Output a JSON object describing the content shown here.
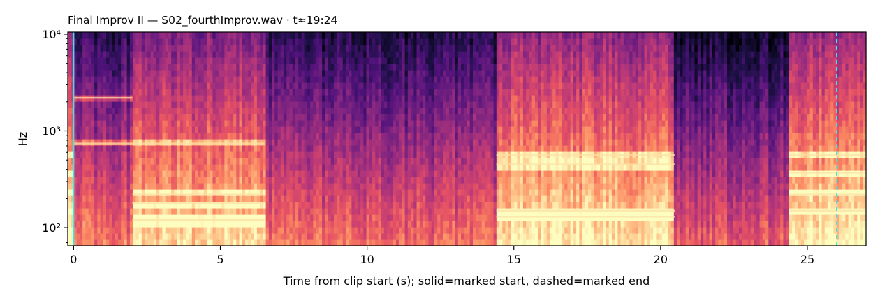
{
  "chart_data": {
    "type": "heatmap",
    "subtype": "spectrogram",
    "title": "Final Improv II  —  S02_fourthImprov.wav · t≈19:24",
    "xlabel": "Time from clip start (s); solid=marked start, dashed=marked end",
    "ylabel": "Hz",
    "xlim": [
      -0.2,
      27
    ],
    "ylim": [
      65,
      10500
    ],
    "yscale": "log",
    "xticks": [
      0,
      5,
      10,
      15,
      20,
      25
    ],
    "xtick_labels": [
      "0",
      "5",
      "10",
      "15",
      "20",
      "25"
    ],
    "yticks": [
      100,
      1000,
      10000
    ],
    "ytick_labels": [
      "10²",
      "10³",
      "10⁴"
    ],
    "colormap": "magma",
    "segments": [
      {
        "start": 0.0,
        "end": 2.0,
        "level": 0.38,
        "tones_hz": [
          740,
          2200
        ]
      },
      {
        "start": 2.0,
        "end": 6.5,
        "level": 0.58,
        "tones_hz": [
          220,
          180,
          740,
          120
        ]
      },
      {
        "start": 6.5,
        "end": 14.4,
        "level": 0.34,
        "tones_hz": []
      },
      {
        "start": 14.4,
        "end": 20.5,
        "level": 0.62,
        "tones_hz": [
          560,
          150,
          130,
          450
        ]
      },
      {
        "start": 20.5,
        "end": 24.4,
        "level": 0.3,
        "tones_hz": []
      },
      {
        "start": 24.4,
        "end": 27.0,
        "level": 0.64,
        "tones_hz": [
          560,
          370,
          220,
          150
        ]
      }
    ],
    "markers": [
      {
        "type": "start",
        "style": "solid",
        "x": 0.0,
        "color": "#38e8f0"
      },
      {
        "type": "end",
        "style": "dashed",
        "x": 26.0,
        "color": "#38e8f0"
      }
    ],
    "grid": false,
    "legend": "none"
  }
}
